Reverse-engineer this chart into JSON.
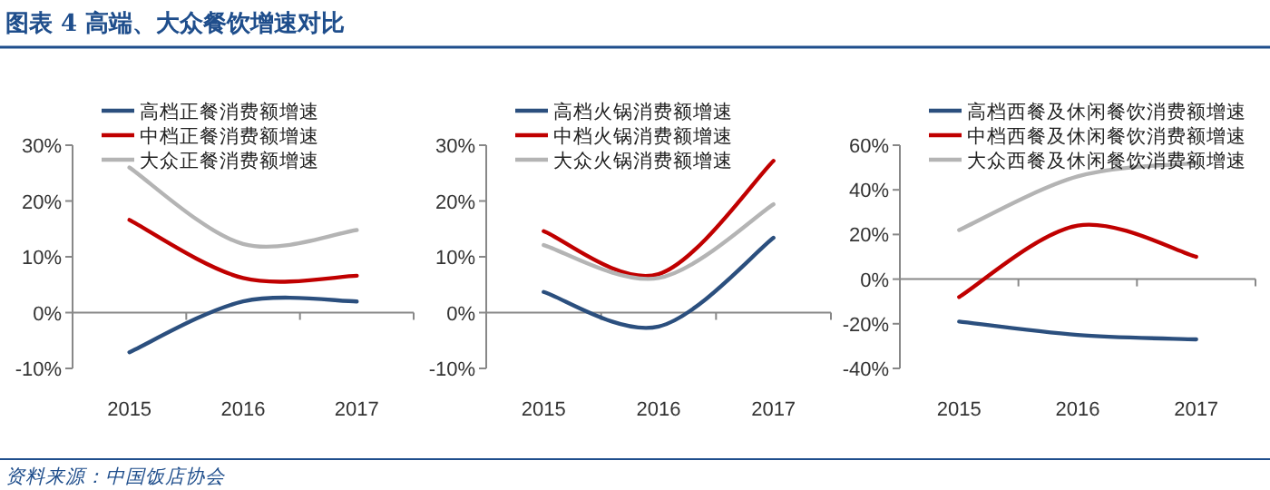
{
  "chart_data": [
    {
      "type": "line",
      "title": "图表 4  高端、大众餐饮增速对比",
      "annotations": [
        "资料来源：中国饭店协会"
      ],
      "categories": [
        "2015",
        "2016",
        "2017"
      ],
      "ylim": [
        -10,
        30
      ],
      "yticks": [
        {
          "value": -10,
          "label": "-10%"
        },
        {
          "value": 0,
          "label": "0%"
        },
        {
          "value": 10,
          "label": "10%"
        },
        {
          "value": 20,
          "label": "20%"
        },
        {
          "value": 30,
          "label": "30%"
        }
      ],
      "legend": "top",
      "series": [
        {
          "name": "高档正餐消费额增速",
          "color": "#2b4f7e",
          "values": [
            -7.1,
            2,
            2
          ]
        },
        {
          "name": "中档正餐消费额增速",
          "color": "#c00000",
          "values": [
            16.6,
            6.2,
            6.6
          ]
        },
        {
          "name": "大众正餐消费额增速",
          "color": "#b4b4b4",
          "values": [
            26,
            12.3,
            14.8
          ]
        }
      ]
    },
    {
      "type": "line",
      "categories": [
        "2015",
        "2016",
        "2017"
      ],
      "ylim": [
        -10,
        30
      ],
      "yticks": [
        {
          "value": -10,
          "label": "-10%"
        },
        {
          "value": 0,
          "label": "0%"
        },
        {
          "value": 10,
          "label": "10%"
        },
        {
          "value": 20,
          "label": "20%"
        },
        {
          "value": 30,
          "label": "30%"
        }
      ],
      "legend": "top",
      "series": [
        {
          "name": "高档火锅消费额增速",
          "color": "#2b4f7e",
          "values": [
            3.7,
            -2.5,
            13.4
          ]
        },
        {
          "name": "中档火锅消费额增速",
          "color": "#c00000",
          "values": [
            14.6,
            6.9,
            27.2
          ]
        },
        {
          "name": "大众火锅消费额增速",
          "color": "#b4b4b4",
          "values": [
            12.1,
            6.2,
            19.4
          ]
        }
      ]
    },
    {
      "type": "line",
      "categories": [
        "2015",
        "2016",
        "2017"
      ],
      "ylim": [
        -40,
        60
      ],
      "yticks": [
        {
          "value": -40,
          "label": "-40%"
        },
        {
          "value": -20,
          "label": "-20%"
        },
        {
          "value": 0,
          "label": "0%"
        },
        {
          "value": 20,
          "label": "20%"
        },
        {
          "value": 40,
          "label": "40%"
        },
        {
          "value": 60,
          "label": "60%"
        }
      ],
      "legend": "top",
      "series": [
        {
          "name": "高档西餐及休闲餐饮消费额增速",
          "color": "#2b4f7e",
          "values": [
            -19,
            -25,
            -27
          ]
        },
        {
          "name": "中档西餐及休闲餐饮消费额增速",
          "color": "#c00000",
          "values": [
            -8,
            24,
            10
          ]
        },
        {
          "name": "大众西餐及休闲餐饮消费额增速",
          "color": "#b4b4b4",
          "values": [
            22,
            46,
            52
          ]
        }
      ]
    }
  ]
}
